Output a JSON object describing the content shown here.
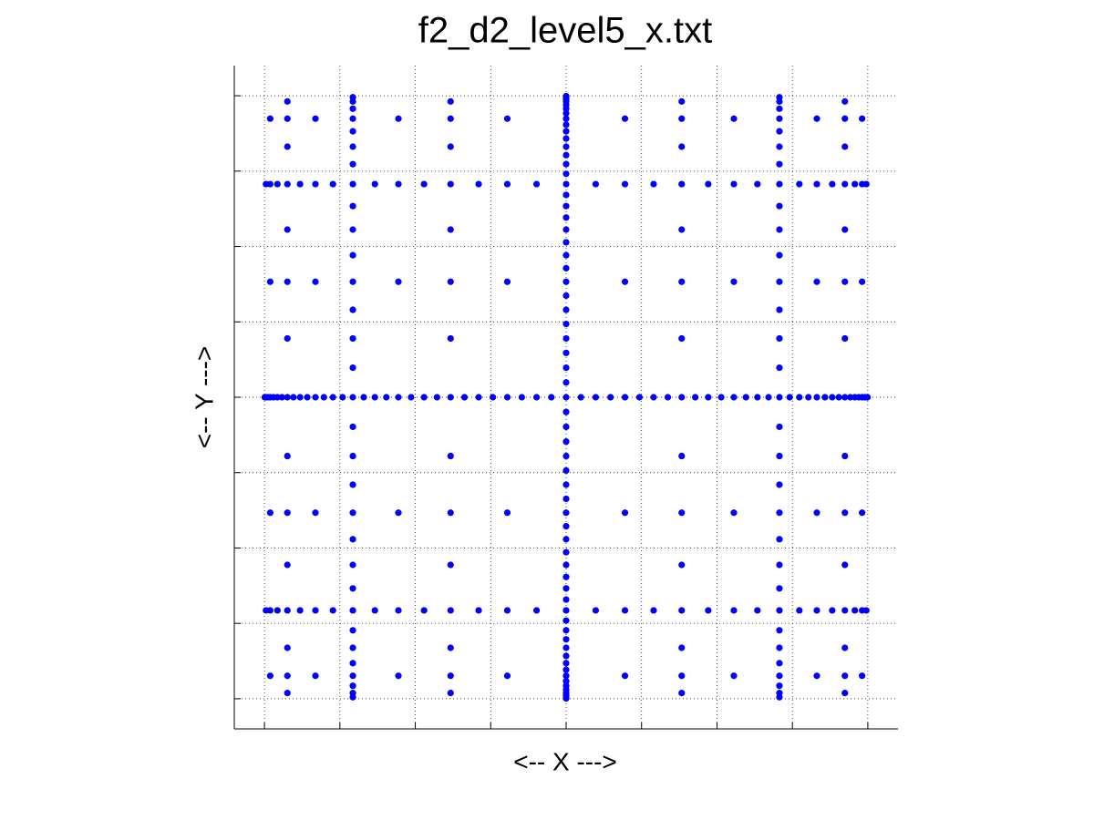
{
  "chart_data": {
    "type": "scatter",
    "title": "f2_d2_level5_x.txt",
    "x_label": "<-- X --->",
    "y_label": "<-- Y --->",
    "color": "#0000ff",
    "grid": true,
    "xlim": [
      -1.1,
      1.1
    ],
    "ylim": [
      -1.1,
      1.1
    ],
    "xticks": [
      -1,
      -0.75,
      -0.5,
      -0.25,
      0,
      0.25,
      0.5,
      0.75,
      1
    ],
    "yticks": [
      -1,
      -0.75,
      -0.5,
      -0.25,
      0,
      0.25,
      0.5,
      0.75,
      1
    ],
    "x": [
      -0.999,
      -0.995,
      -0.989,
      -0.981,
      -0.97,
      -0.957,
      -0.942,
      -0.924,
      -0.904,
      -0.882,
      -0.858,
      -0.831,
      -0.803,
      -0.773,
      -0.741,
      -0.707,
      -0.671,
      -0.634,
      -0.596,
      -0.556,
      -0.514,
      -0.471,
      -0.428,
      -0.383,
      -0.337,
      -0.29,
      -0.243,
      -0.195,
      -0.147,
      -0.098,
      -0.049,
      0,
      0.049,
      0.098,
      0.147,
      0.195,
      0.243,
      0.29,
      0.337,
      0.383,
      0.428,
      0.471,
      0.514,
      0.556,
      0.596,
      0.634,
      0.671,
      0.707,
      0.741,
      0.773,
      0.803,
      0.831,
      0.858,
      0.882,
      0.904,
      0.924,
      0.942,
      0.957,
      0.97,
      0.981,
      0.989,
      0.995,
      0.999,
      -0.995,
      -0.981,
      -0.957,
      -0.924,
      -0.882,
      -0.831,
      -0.773,
      -0.707,
      -0.634,
      -0.556,
      -0.471,
      -0.383,
      -0.29,
      -0.195,
      -0.098,
      0,
      0.098,
      0.195,
      0.29,
      0.383,
      0.471,
      0.556,
      0.634,
      0.707,
      0.773,
      0.831,
      0.882,
      0.924,
      0.957,
      0.981,
      0.995,
      -0.995,
      -0.981,
      -0.957,
      -0.924,
      -0.882,
      -0.831,
      -0.773,
      -0.707,
      -0.634,
      -0.556,
      -0.471,
      -0.383,
      -0.29,
      -0.195,
      -0.098,
      0,
      0.098,
      0.195,
      0.29,
      0.383,
      0.471,
      0.556,
      0.634,
      0.707,
      0.773,
      0.831,
      0.882,
      0.924,
      0.957,
      0.981,
      0.995,
      -0.981,
      -0.924,
      -0.831,
      -0.707,
      -0.556,
      -0.383,
      -0.195,
      0,
      0.195,
      0.383,
      0.556,
      0.707,
      0.831,
      0.924,
      0.981,
      -0.981,
      -0.924,
      -0.831,
      -0.707,
      -0.556,
      -0.383,
      -0.195,
      0,
      0.195,
      0.383,
      0.556,
      0.707,
      0.831,
      0.924,
      0.981,
      -0.981,
      -0.924,
      -0.831,
      -0.707,
      -0.556,
      -0.383,
      -0.195,
      0,
      0.195,
      0.383,
      0.556,
      0.707,
      0.831,
      0.924,
      0.981,
      -0.981,
      -0.924,
      -0.831,
      -0.707,
      -0.556,
      -0.383,
      -0.195,
      0,
      0.195,
      0.383,
      0.556,
      0.707,
      0.831,
      0.924,
      0.981,
      -0.924,
      -0.707,
      -0.383,
      0,
      0.383,
      0.707,
      0.924,
      -0.924,
      -0.707,
      -0.383,
      0,
      0.383,
      0.707,
      0.924,
      -0.924,
      -0.707,
      -0.383,
      0,
      0.383,
      0.707,
      0.924,
      -0.924,
      -0.707,
      -0.383,
      0,
      0.383,
      0.707,
      0.924,
      -0.924,
      -0.707,
      -0.383,
      0,
      0.383,
      0.707,
      0.924,
      -0.924,
      -0.707,
      -0.383,
      0,
      0.383,
      0.707,
      0.924,
      -0.924,
      -0.707,
      -0.383,
      0,
      0.383,
      0.707,
      0.924,
      -0.924,
      -0.707,
      -0.383,
      0,
      0.383,
      0.707,
      0.924,
      -0.707,
      0,
      0.707,
      -0.707,
      0,
      0.707,
      -0.707,
      0,
      0.707,
      -0.707,
      0,
      0.707,
      -0.707,
      0,
      0.707,
      -0.707,
      0,
      0.707,
      -0.707,
      0,
      0.707,
      -0.707,
      0,
      0.707,
      -0.707,
      0,
      0.707,
      -0.707,
      0,
      0.707,
      -0.707,
      0,
      0.707,
      -0.707,
      0,
      0.707,
      -0.707,
      0,
      0.707,
      -0.707,
      0,
      0.707,
      -0.707,
      0,
      0.707,
      -0.707,
      0,
      0.707,
      0,
      0,
      0,
      0,
      0,
      0,
      0,
      0,
      0,
      0,
      0,
      0,
      0,
      0,
      0,
      0,
      0,
      0,
      0,
      0,
      0,
      0,
      0,
      0,
      0,
      0,
      0,
      0,
      0,
      0,
      0,
      0
    ],
    "values": [
      0,
      0,
      0,
      0,
      0,
      0,
      0,
      0,
      0,
      0,
      0,
      0,
      0,
      0,
      0,
      0,
      0,
      0,
      0,
      0,
      0,
      0,
      0,
      0,
      0,
      0,
      0,
      0,
      0,
      0,
      0,
      0,
      0,
      0,
      0,
      0,
      0,
      0,
      0,
      0,
      0,
      0,
      0,
      0,
      0,
      0,
      0,
      0,
      0,
      0,
      0,
      0,
      0,
      0,
      0,
      0,
      0,
      0,
      0,
      0,
      0,
      0,
      0,
      0.707,
      0.707,
      0.707,
      0.707,
      0.707,
      0.707,
      0.707,
      0.707,
      0.707,
      0.707,
      0.707,
      0.707,
      0.707,
      0.707,
      0.707,
      0.707,
      0.707,
      0.707,
      0.707,
      0.707,
      0.707,
      0.707,
      0.707,
      0.707,
      0.707,
      0.707,
      0.707,
      0.707,
      0.707,
      0.707,
      0.707,
      -0.707,
      -0.707,
      -0.707,
      -0.707,
      -0.707,
      -0.707,
      -0.707,
      -0.707,
      -0.707,
      -0.707,
      -0.707,
      -0.707,
      -0.707,
      -0.707,
      -0.707,
      -0.707,
      -0.707,
      -0.707,
      -0.707,
      -0.707,
      -0.707,
      -0.707,
      -0.707,
      -0.707,
      -0.707,
      -0.707,
      -0.707,
      -0.707,
      -0.707,
      -0.707,
      -0.707,
      0.924,
      0.924,
      0.924,
      0.924,
      0.924,
      0.924,
      0.924,
      0.924,
      0.924,
      0.924,
      0.924,
      0.924,
      0.924,
      0.924,
      0.924,
      0.383,
      0.383,
      0.383,
      0.383,
      0.383,
      0.383,
      0.383,
      0.383,
      0.383,
      0.383,
      0.383,
      0.383,
      0.383,
      0.383,
      0.383,
      -0.383,
      -0.383,
      -0.383,
      -0.383,
      -0.383,
      -0.383,
      -0.383,
      -0.383,
      -0.383,
      -0.383,
      -0.383,
      -0.383,
      -0.383,
      -0.383,
      -0.383,
      -0.924,
      -0.924,
      -0.924,
      -0.924,
      -0.924,
      -0.924,
      -0.924,
      -0.924,
      -0.924,
      -0.924,
      -0.924,
      -0.924,
      -0.924,
      -0.924,
      -0.924,
      0.981,
      0.981,
      0.981,
      0.981,
      0.981,
      0.981,
      0.981,
      0.831,
      0.831,
      0.831,
      0.831,
      0.831,
      0.831,
      0.831,
      0.556,
      0.556,
      0.556,
      0.556,
      0.556,
      0.556,
      0.556,
      0.195,
      0.195,
      0.195,
      0.195,
      0.195,
      0.195,
      0.195,
      -0.195,
      -0.195,
      -0.195,
      -0.195,
      -0.195,
      -0.195,
      -0.195,
      -0.556,
      -0.556,
      -0.556,
      -0.556,
      -0.556,
      -0.556,
      -0.556,
      -0.831,
      -0.831,
      -0.831,
      -0.831,
      -0.831,
      -0.831,
      -0.831,
      -0.981,
      -0.981,
      -0.981,
      -0.981,
      -0.981,
      -0.981,
      -0.981,
      0.995,
      0.995,
      0.995,
      0.957,
      0.957,
      0.957,
      0.882,
      0.882,
      0.882,
      0.773,
      0.773,
      0.773,
      0.634,
      0.634,
      0.634,
      0.471,
      0.471,
      0.471,
      0.29,
      0.29,
      0.29,
      0.098,
      0.098,
      0.098,
      -0.098,
      -0.098,
      -0.098,
      -0.29,
      -0.29,
      -0.29,
      -0.471,
      -0.471,
      -0.471,
      -0.634,
      -0.634,
      -0.634,
      -0.773,
      -0.773,
      -0.773,
      -0.882,
      -0.882,
      -0.882,
      -0.957,
      -0.957,
      -0.957,
      -0.995,
      -0.995,
      -0.995,
      0.999,
      0.989,
      0.97,
      0.942,
      0.904,
      0.858,
      0.803,
      0.741,
      0.671,
      0.596,
      0.514,
      0.428,
      0.337,
      0.243,
      0.147,
      0.049,
      -0.049,
      -0.147,
      -0.243,
      -0.337,
      -0.428,
      -0.514,
      -0.596,
      -0.671,
      -0.741,
      -0.803,
      -0.858,
      -0.904,
      -0.942,
      -0.97,
      -0.989,
      -0.999
    ]
  }
}
